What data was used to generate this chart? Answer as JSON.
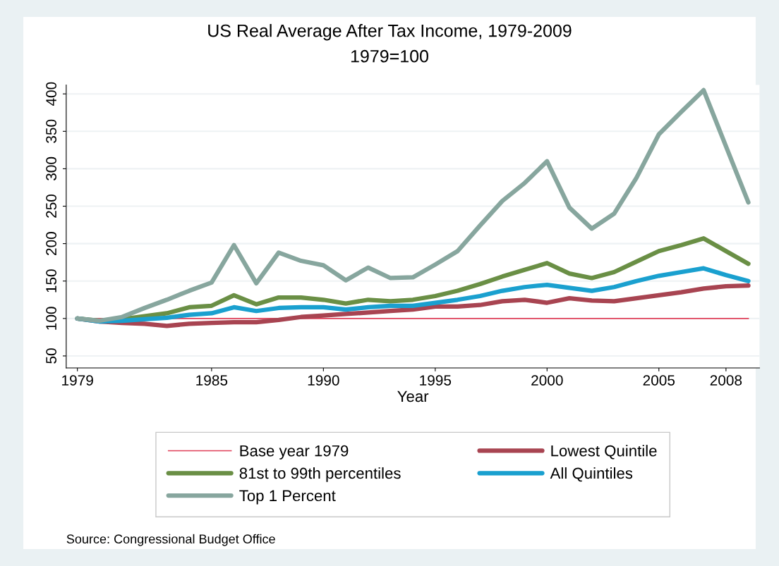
{
  "chart_data": {
    "type": "line",
    "title": "US Real Average After Tax Income, 1979-2009",
    "subtitle": "1979=100",
    "xlabel": "Year",
    "x": [
      1979,
      1980,
      1981,
      1982,
      1983,
      1984,
      1985,
      1986,
      1987,
      1988,
      1989,
      1990,
      1991,
      1992,
      1993,
      1994,
      1995,
      1996,
      1997,
      1998,
      1999,
      2000,
      2001,
      2002,
      2003,
      2004,
      2005,
      2006,
      2007,
      2008,
      2009
    ],
    "series": [
      {
        "name": "Lowest Quintile",
        "color": "#a84451",
        "values": [
          100,
          96,
          94,
          93,
          90,
          93,
          94,
          95,
          95,
          98,
          102,
          104,
          106,
          108,
          110,
          112,
          116,
          116,
          118,
          123,
          125,
          121,
          127,
          124,
          123,
          127,
          131,
          135,
          140,
          143,
          144
        ]
      },
      {
        "name": "81st to 99th percentiles",
        "color": "#6a8f45",
        "values": [
          100,
          97,
          99,
          103,
          107,
          115,
          117,
          131,
          119,
          128,
          128,
          125,
          120,
          125,
          123,
          125,
          130,
          137,
          146,
          156,
          165,
          174,
          160,
          154,
          162,
          176,
          190,
          198,
          207,
          190,
          173
        ]
      },
      {
        "name": "All Quintiles",
        "color": "#1aa0cf",
        "values": [
          100,
          96,
          97,
          99,
          101,
          105,
          107,
          115,
          110,
          114,
          115,
          115,
          112,
          115,
          117,
          117,
          121,
          125,
          130,
          137,
          142,
          145,
          141,
          137,
          142,
          150,
          157,
          162,
          167,
          158,
          150
        ]
      },
      {
        "name": "Top 1 Percent",
        "color": "#87a69e",
        "values": [
          100,
          97,
          102,
          114,
          125,
          137,
          148,
          198,
          147,
          188,
          177,
          171,
          151,
          168,
          154,
          155,
          172,
          190,
          224,
          257,
          281,
          310,
          248,
          220,
          240,
          288,
          346,
          376,
          405,
          330,
          255
        ]
      }
    ],
    "xlim": [
      1978.5,
      2009.5
    ],
    "xticks": [
      1979,
      1985,
      1990,
      1995,
      2000,
      2005,
      2008
    ],
    "ylim": [
      34,
      412
    ],
    "yticks": [
      50,
      100,
      150,
      200,
      250,
      300,
      350,
      400
    ],
    "ref_lines": [
      {
        "axis": "y",
        "value": 100,
        "label": "Base year 1979",
        "color": "#e0405a"
      }
    ],
    "grid": "y",
    "legend": "bottom",
    "line_style": "solid",
    "marker": "none",
    "annotations": [
      "Source: Congressional Budget Office"
    ]
  }
}
